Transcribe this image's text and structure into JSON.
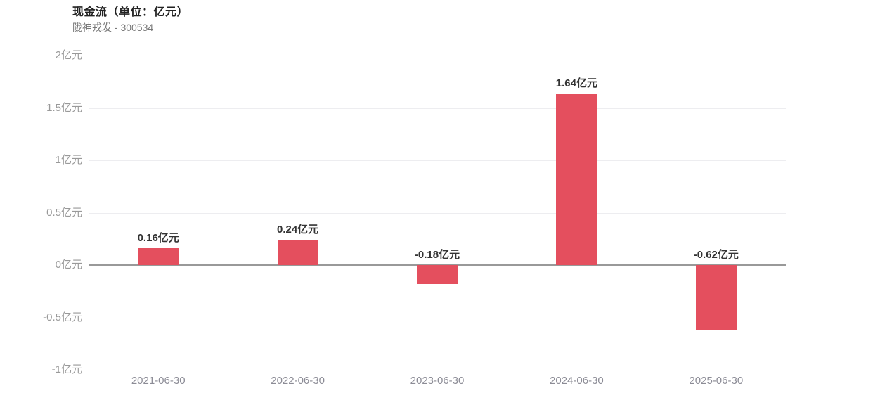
{
  "header": {
    "title": "现金流（单位：亿元）",
    "subtitle": "陇神戎发 - 300534"
  },
  "colors": {
    "bar": "#e44f5e",
    "grid_line": "#ededf0",
    "zero_line": "#999999",
    "y_axis_label": "#999999",
    "x_axis_label": "#8c8c96",
    "value_label": "#333333",
    "title": "#222222",
    "subtitle": "#777777",
    "background": "#ffffff"
  },
  "chart_data": {
    "type": "bar",
    "title": "现金流（单位：亿元）",
    "subtitle": "陇神戎发 - 300534",
    "categories": [
      "2021-06-30",
      "2022-06-30",
      "2023-06-30",
      "2024-06-30",
      "2025-06-30"
    ],
    "values": [
      0.16,
      0.24,
      -0.18,
      1.64,
      -0.62
    ],
    "value_labels": [
      "0.16亿元",
      "0.24亿元",
      "-0.18亿元",
      "1.64亿元",
      "-0.62亿元"
    ],
    "unit": "亿元",
    "ylim": [
      -1,
      2
    ],
    "yticks": [
      {
        "value": 2,
        "label": "2亿元"
      },
      {
        "value": 1.5,
        "label": "1.5亿元"
      },
      {
        "value": 1,
        "label": "1亿元"
      },
      {
        "value": 0.5,
        "label": "0.5亿元"
      },
      {
        "value": 0,
        "label": "0亿元"
      },
      {
        "value": -0.5,
        "label": "-0.5亿元"
      },
      {
        "value": -1,
        "label": "-1亿元"
      }
    ],
    "grid": true,
    "legend": false
  }
}
